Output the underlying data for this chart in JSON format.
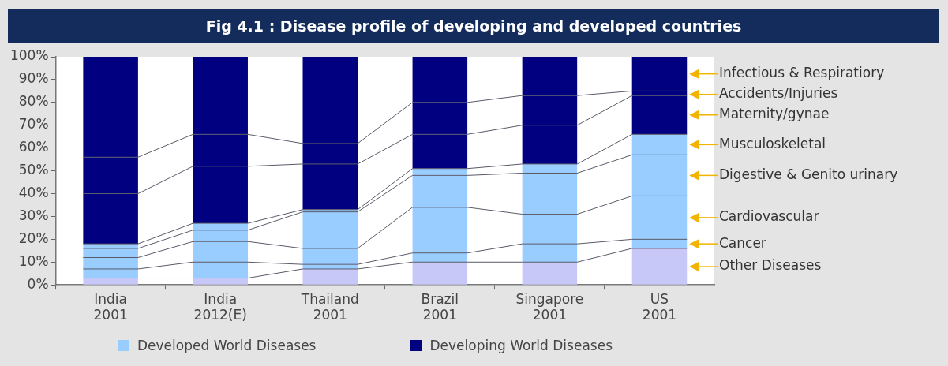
{
  "chart_data": {
    "type": "bar",
    "title": "Fig 4.1 : Disease profile of developing and developed countries",
    "categories": [
      "India 2001",
      "India 2012(E)",
      "Thailand 2001",
      "Brazil 2001",
      "Singapore 2001",
      "US 2001"
    ],
    "stacked": true,
    "series": [
      {
        "name": "Other Diseases",
        "color": "#c8c8f8",
        "values": [
          3,
          3,
          7,
          10,
          10,
          16
        ]
      },
      {
        "name": "Cancer",
        "color": "#99ccff",
        "values": [
          4,
          7,
          2,
          4,
          8,
          4
        ]
      },
      {
        "name": "Cardiovascular",
        "color": "#99ccff",
        "values": [
          5,
          9,
          7,
          20,
          13,
          19
        ]
      },
      {
        "name": "Digestive & Genito urinary",
        "color": "#99ccff",
        "values": [
          4,
          5,
          16,
          14,
          18,
          18
        ]
      },
      {
        "name": "Musculoskeletal",
        "color": "#99ccff",
        "values": [
          2,
          3,
          1,
          3,
          4,
          9
        ]
      },
      {
        "name": "Maternity/gynae",
        "color": "#000080",
        "values": [
          22,
          25,
          20,
          15,
          17,
          17
        ]
      },
      {
        "name": "Accidents/Injuries",
        "color": "#000080",
        "values": [
          16,
          14,
          9,
          14,
          13,
          2
        ]
      },
      {
        "name": "Infectious & Respiratiory",
        "color": "#000080",
        "values": [
          44,
          34,
          38,
          20,
          17,
          15
        ]
      }
    ],
    "ylim": [
      0,
      100
    ],
    "yticks": [
      {
        "value": 0,
        "label": "0%"
      },
      {
        "value": 10,
        "label": "10%"
      },
      {
        "value": 20,
        "label": "20%"
      },
      {
        "value": 30,
        "label": "30%"
      },
      {
        "value": 40,
        "label": "40%"
      },
      {
        "value": 50,
        "label": "50%"
      },
      {
        "value": 60,
        "label": "60%"
      },
      {
        "value": 70,
        "label": "70%"
      },
      {
        "value": 80,
        "label": "80%"
      },
      {
        "value": 90,
        "label": "90%"
      },
      {
        "value": 100,
        "label": "100%"
      }
    ],
    "grid": false,
    "legend": "right",
    "annotations": [
      "Developed World Diseases",
      "Developing World Diseases"
    ]
  }
}
